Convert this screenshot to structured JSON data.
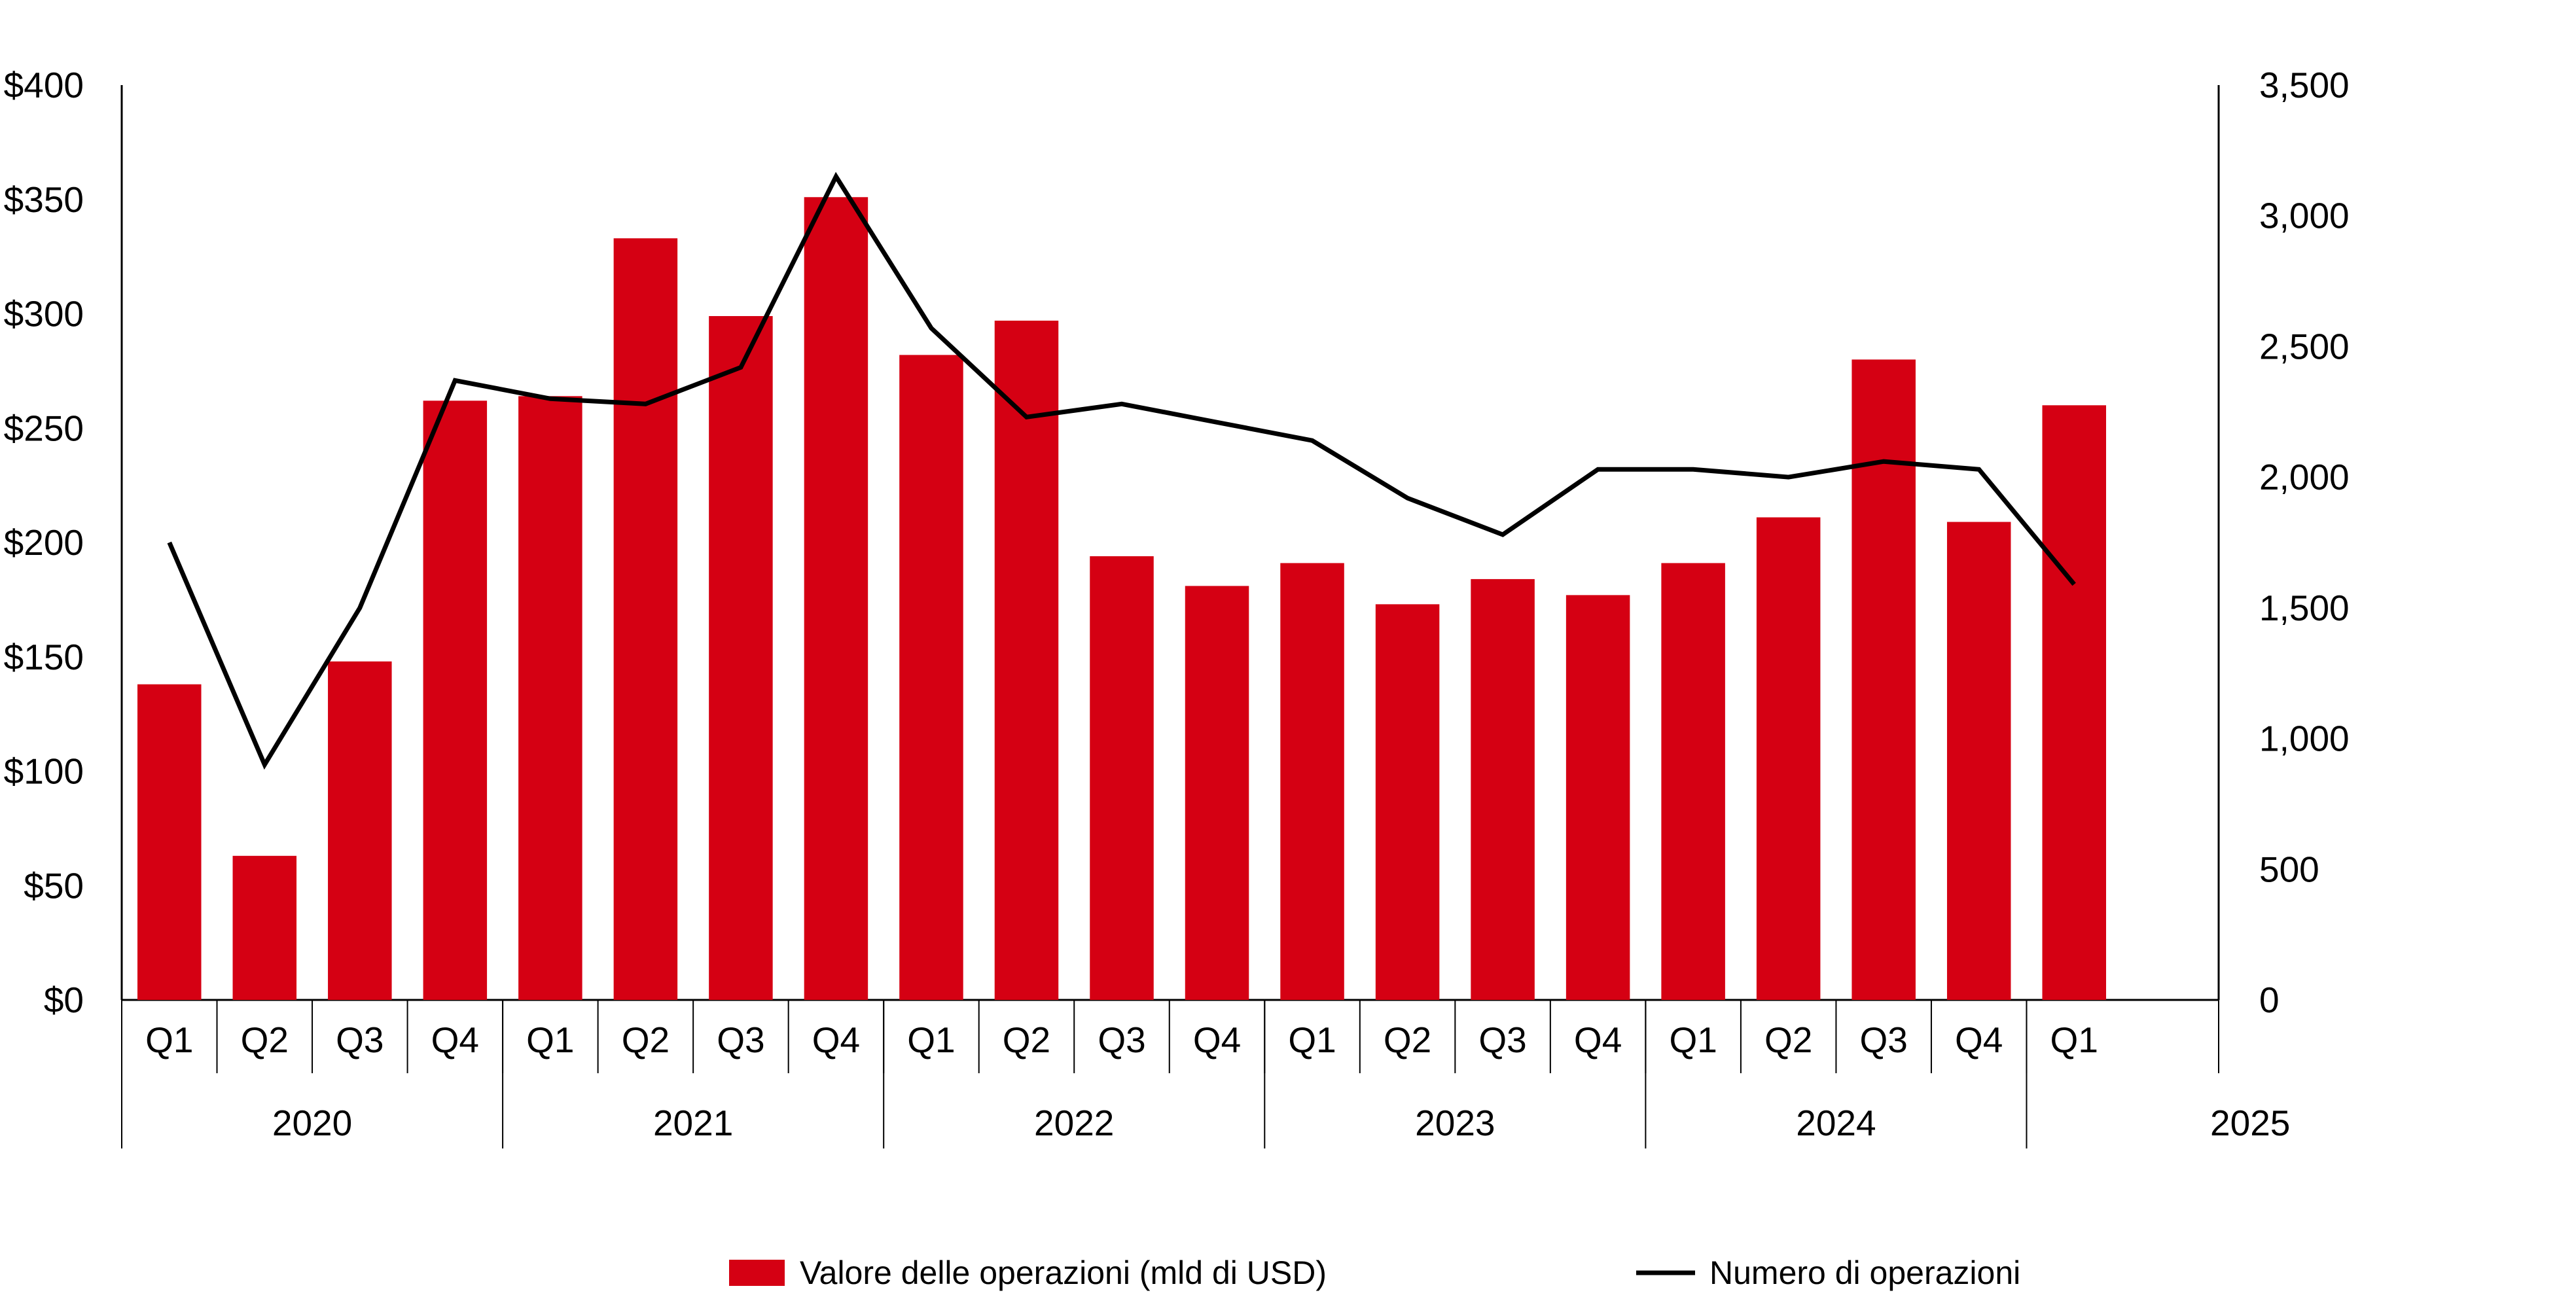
{
  "chart_data": {
    "type": "bar",
    "categories": [
      "Q1",
      "Q2",
      "Q3",
      "Q4",
      "Q1",
      "Q2",
      "Q3",
      "Q4",
      "Q1",
      "Q2",
      "Q3",
      "Q4",
      "Q1",
      "Q2",
      "Q3",
      "Q4",
      "Q1",
      "Q2",
      "Q3",
      "Q4",
      "Q1"
    ],
    "years": [
      {
        "label": "2020",
        "count": 4
      },
      {
        "label": "2021",
        "count": 4
      },
      {
        "label": "2022",
        "count": 4
      },
      {
        "label": "2023",
        "count": 4
      },
      {
        "label": "2024",
        "count": 4
      },
      {
        "label": "2025",
        "count": 1
      }
    ],
    "series": [
      {
        "name": "Valore delle operazioni (mld di USD)",
        "kind": "bar",
        "axis": "left",
        "color": "#d50013",
        "values": [
          138,
          63,
          148,
          262,
          264,
          333,
          299,
          351,
          282,
          297,
          194,
          181,
          191,
          173,
          184,
          177,
          191,
          211,
          280,
          209,
          260
        ]
      },
      {
        "name": "Numero di operazioni",
        "kind": "line",
        "axis": "right",
        "color": "#000000",
        "values": [
          1750,
          900,
          1500,
          2370,
          2300,
          2280,
          2420,
          3150,
          2570,
          2230,
          2280,
          2210,
          2140,
          1920,
          1780,
          2030,
          2030,
          2000,
          2060,
          2030,
          1590
        ]
      }
    ],
    "y_left": {
      "min": 0,
      "max": 400,
      "ticks": [
        "$0",
        "$50",
        "$100",
        "$150",
        "$200",
        "$250",
        "$300",
        "$350",
        "$400"
      ]
    },
    "y_right": {
      "min": 0,
      "max": 3500,
      "ticks": [
        "0",
        "500",
        "1,000",
        "1,500",
        "2,000",
        "2,500",
        "3,000",
        "3,500"
      ]
    },
    "grid": false,
    "legend_position": "bottom"
  }
}
